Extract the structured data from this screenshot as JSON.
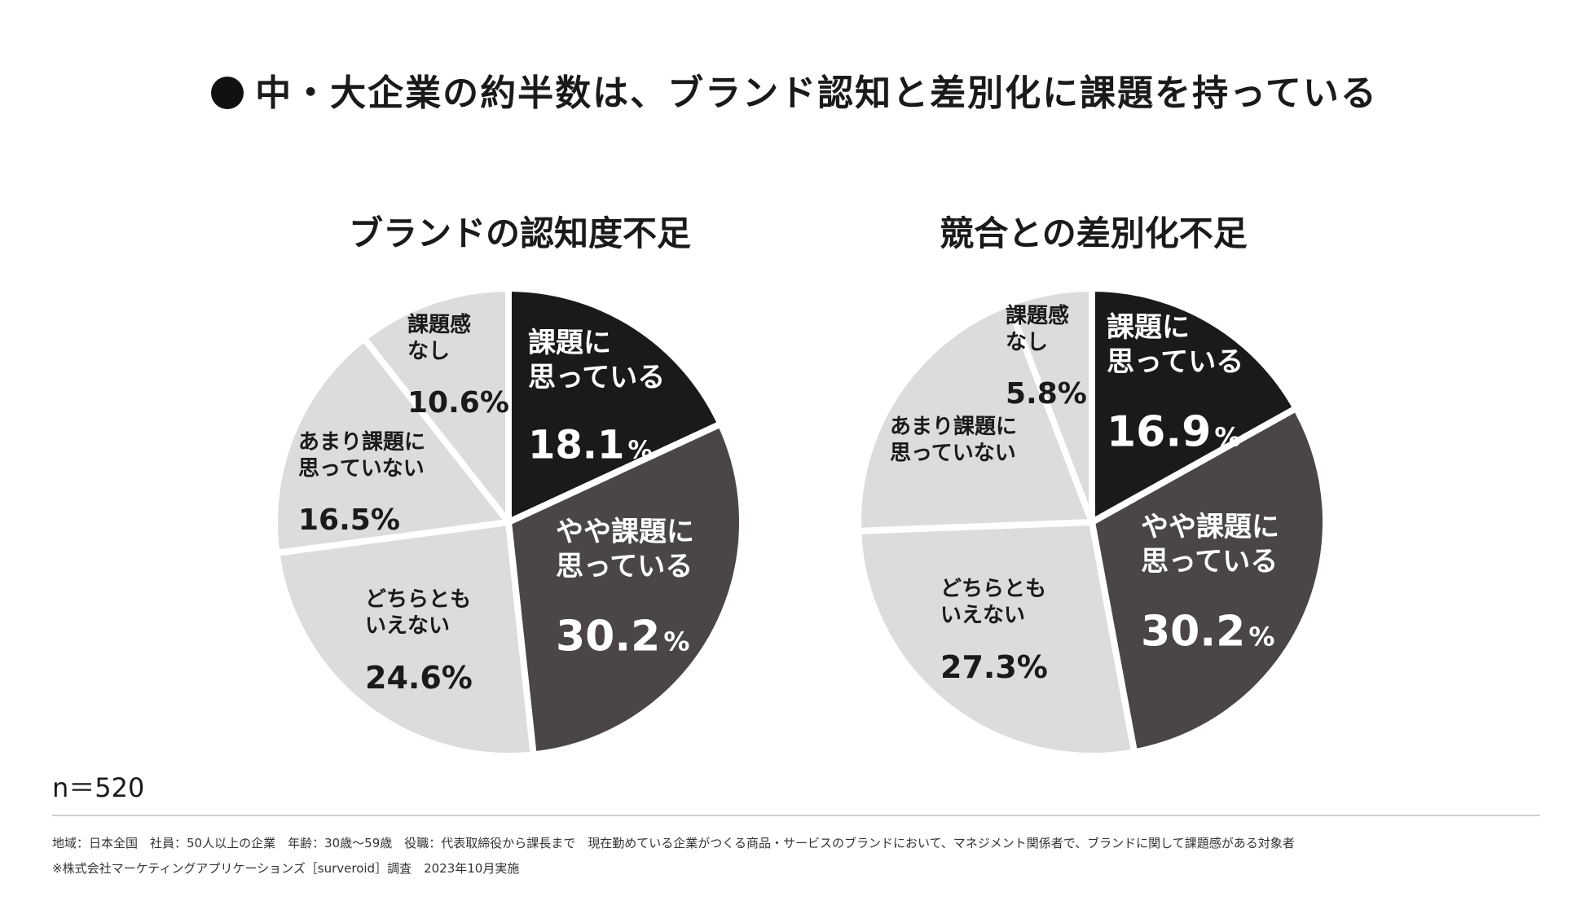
{
  "title": "中・大企業の約半数は、ブランド認知と差別化に課題を持っている",
  "sample": "n＝520",
  "notes": {
    "line1": "地域：日本全国　社員：50人以上の企業　年齢：30歳〜59歳　役職：代表取締役から課長まで　現在勤めている企業がつくる商品・サービスのブランドにおいて、マネジメント関係者で、ブランドに関して課題感がある対象者",
    "line2": "※株式会社マーケティングアプリケーションズ［surveroid］調査　2023年10月実施"
  },
  "colors": {
    "black": "#1a1a1a",
    "dark": "#4a4646",
    "light": "#dcdcdc",
    "white": "#ffffff"
  },
  "chart_data": [
    {
      "type": "pie",
      "title": "ブランドの認知度不足",
      "slices": [
        {
          "label_lines": [
            "課題に",
            "思っている"
          ],
          "value": 18.1,
          "value_label": "18.1",
          "pct_label": "%",
          "color_key": "black"
        },
        {
          "label_lines": [
            "やや課題に",
            "思っている"
          ],
          "value": 30.2,
          "value_label": "30.2",
          "pct_label": "%",
          "color_key": "dark"
        },
        {
          "label_lines": [
            "どちらとも",
            "いえない"
          ],
          "value": 24.6,
          "value_label": "24.6%",
          "pct_label": "",
          "color_key": "light"
        },
        {
          "label_lines": [
            "あまり課題に",
            "思っていない"
          ],
          "value": 16.5,
          "value_label": "16.5%",
          "pct_label": "",
          "color_key": "light"
        },
        {
          "label_lines": [
            "課題感",
            "なし"
          ],
          "value": 10.6,
          "value_label": "10.6%",
          "pct_label": "",
          "color_key": "light"
        }
      ]
    },
    {
      "type": "pie",
      "title": "競合との差別化不足",
      "slices": [
        {
          "label_lines": [
            "課題に",
            "思っている"
          ],
          "value": 16.9,
          "value_label": "16.9",
          "pct_label": "%",
          "color_key": "black"
        },
        {
          "label_lines": [
            "やや課題に",
            "思っている"
          ],
          "value": 30.2,
          "value_label": "30.2",
          "pct_label": "%",
          "color_key": "dark"
        },
        {
          "label_lines": [
            "どちらとも",
            "いえない"
          ],
          "value": 27.3,
          "value_label": "27.3%",
          "pct_label": "",
          "color_key": "light"
        },
        {
          "label_lines": [
            "あまり課題に",
            "思っていない"
          ],
          "value": 19.8,
          "value_label": "",
          "pct_label": "",
          "color_key": "light"
        },
        {
          "label_lines": [
            "課題感",
            "なし"
          ],
          "value": 5.8,
          "value_label": "5.8%",
          "pct_label": "",
          "color_key": "light"
        }
      ]
    }
  ]
}
